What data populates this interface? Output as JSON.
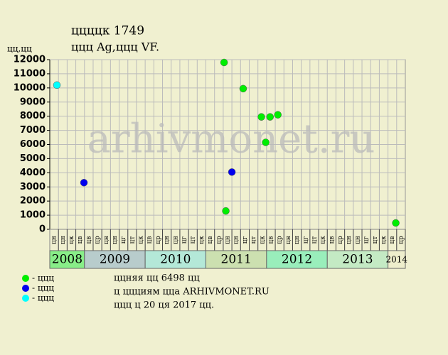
{
  "chart_data": {
    "type": "scatter",
    "title": "ццццк 1749",
    "subtitle": "ццц Ag,ццц VF.",
    "y_label": "цц,цц",
    "watermark": "arhivmonet.ru",
    "ylim": [
      0,
      12000
    ],
    "yticks": [
      0,
      1000,
      2000,
      3000,
      4000,
      5000,
      6000,
      7000,
      8000,
      9000,
      10000,
      11000,
      12000
    ],
    "grid": true,
    "xlim": [
      0,
      41
    ],
    "categories": [
      "цн",
      "цн",
      "цк",
      "цв",
      "цв",
      "цр",
      "цн",
      "цн",
      "цг",
      "цт",
      "цк",
      "цв",
      "цр",
      "цн",
      "цн",
      "цг",
      "цт",
      "цк",
      "цв",
      "цр",
      "цн",
      "цн",
      "цг",
      "цт",
      "цк",
      "цв",
      "цр",
      "цн",
      "цн",
      "цг",
      "цт",
      "цк",
      "цв",
      "цр",
      "цн",
      "цн",
      "цг",
      "цт",
      "цк",
      "цв",
      "цр"
    ],
    "years": [
      "2008",
      "2009",
      "2010",
      "2011",
      "2012",
      "2013",
      "2014"
    ],
    "year_months": [
      4,
      7,
      7,
      7,
      7,
      7,
      2
    ],
    "year_colors": [
      "#88ee88",
      "#b8cccc",
      "#b4e8d8",
      "#cce0b0",
      "#99eebb",
      "#c4eac4",
      "#eeeecc"
    ],
    "series": [
      {
        "name": "- ццц",
        "color": "#00ee00",
        "x": [
          20.1,
          20.3,
          22.3,
          24.4,
          24.9,
          25.4,
          26.3,
          39.9
        ],
        "values": [
          11800,
          1300,
          9950,
          7950,
          6150,
          7950,
          8100,
          450
        ]
      },
      {
        "name": "- ццц",
        "color": "#0000ee",
        "x": [
          3.94,
          21.0
        ],
        "values": [
          3300,
          4050
        ]
      },
      {
        "name": "- ццц",
        "color": "#00ffff",
        "x": [
          0.82
        ],
        "values": [
          10200
        ]
      }
    ],
    "notes": [
      "ццняя цц 6498 цц",
      "ц ццциям цца ARHIVMONET.RU",
      "ццц ц 20 ця 2017 цц."
    ]
  }
}
